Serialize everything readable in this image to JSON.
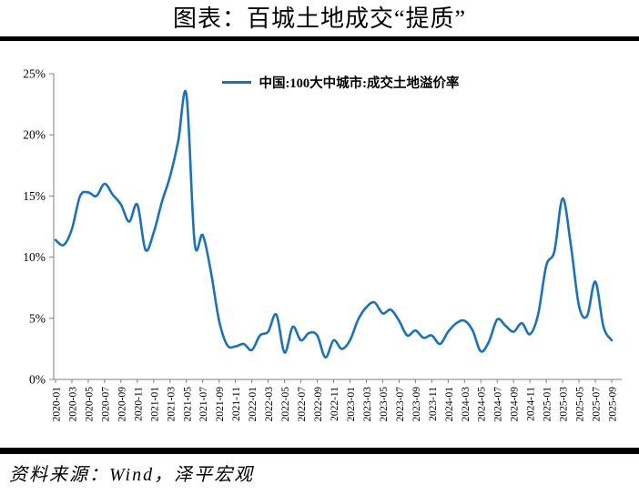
{
  "title": "图表：百城土地成交“提质”",
  "legend": {
    "label": "中国:100大中城市:成交土地溢价率"
  },
  "source": "资料来源：Wind，泽平宏观",
  "colors": {
    "line": "#1673C4",
    "axis": "#808080",
    "rule": "#000000",
    "text": "#000000"
  },
  "chart_data": {
    "type": "line",
    "title": "图表：百城土地成交“提质”",
    "series_name": "中国:100大中城市:成交土地溢价率",
    "smoothed": true,
    "grid": false,
    "legend_position": "top-center",
    "ylabel": "",
    "xlabel": "",
    "ylim": [
      0,
      25
    ],
    "y_ticks": [
      "25%",
      "20%",
      "15%",
      "10%",
      "5%",
      "0%"
    ],
    "x_label_every": 2,
    "categories": [
      "2020-01",
      "2020-02",
      "2020-03",
      "2020-04",
      "2020-05",
      "2020-06",
      "2020-07",
      "2020-08",
      "2020-09",
      "2020-10",
      "2020-11",
      "2020-12",
      "2021-01",
      "2021-02",
      "2021-03",
      "2021-04",
      "2021-05",
      "2021-06",
      "2021-07",
      "2021-08",
      "2021-09",
      "2021-10",
      "2021-11",
      "2021-12",
      "2022-01",
      "2022-02",
      "2022-03",
      "2022-04",
      "2022-05",
      "2022-06",
      "2022-07",
      "2022-08",
      "2022-09",
      "2022-10",
      "2022-11",
      "2022-12",
      "2023-01",
      "2023-02",
      "2023-03",
      "2023-04",
      "2023-05",
      "2023-06",
      "2023-07",
      "2023-08",
      "2023-09",
      "2023-10",
      "2023-11",
      "2023-12",
      "2024-01",
      "2024-02",
      "2024-03",
      "2024-04",
      "2024-05",
      "2024-06",
      "2024-07",
      "2024-08",
      "2024-09",
      "2024-10",
      "2024-11",
      "2024-12",
      "2025-01",
      "2025-02",
      "2025-03",
      "2025-04",
      "2025-05",
      "2025-06",
      "2025-07",
      "2025-08",
      "2025-09"
    ],
    "values": [
      11.4,
      11.0,
      12.3,
      15.0,
      15.3,
      15.0,
      16.0,
      15.1,
      14.3,
      12.9,
      14.3,
      10.6,
      12.0,
      14.5,
      16.6,
      19.5,
      23.3,
      11.2,
      11.8,
      8.8,
      4.8,
      2.8,
      2.7,
      2.9,
      2.4,
      3.6,
      3.9,
      5.3,
      2.2,
      4.3,
      3.2,
      3.8,
      3.6,
      1.8,
      3.2,
      2.5,
      3.2,
      4.9,
      5.9,
      6.3,
      5.4,
      5.7,
      4.8,
      3.6,
      4.0,
      3.4,
      3.6,
      2.9,
      3.9,
      4.6,
      4.8,
      4.0,
      2.3,
      3.1,
      4.9,
      4.4,
      3.9,
      4.6,
      3.7,
      5.3,
      9.3,
      10.5,
      14.8,
      11.0,
      6.0,
      5.2,
      8.0,
      4.3,
      3.2
    ]
  }
}
